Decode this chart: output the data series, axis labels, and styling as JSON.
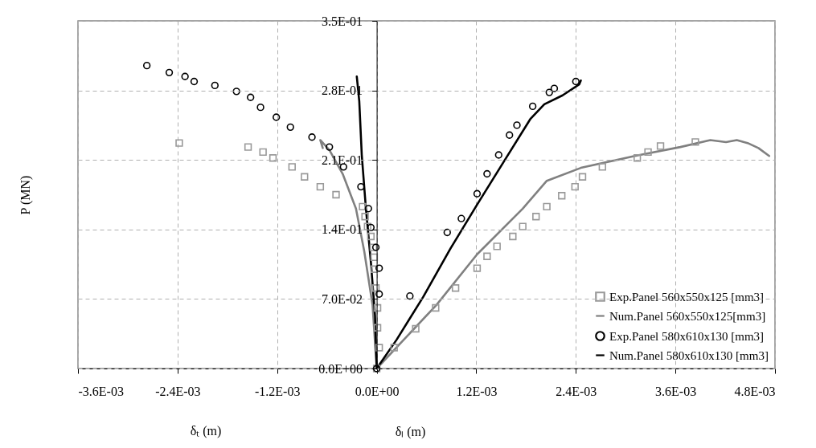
{
  "chart_data": {
    "type": "scatter",
    "xlabel": "δₗ (m)",
    "ylabel": "P (MN)",
    "annotations": [
      "δₜ (m)"
    ],
    "xlim": [
      -0.0036,
      0.0048
    ],
    "xticks": [
      {
        "value": -0.0036,
        "label": "-3.6E-03"
      },
      {
        "value": -0.0024,
        "label": "-2.4E-03"
      },
      {
        "value": -0.0012,
        "label": "-1.2E-03"
      },
      {
        "value": 0,
        "label": "0.0E+00"
      },
      {
        "value": 0.0012,
        "label": "1.2E-03"
      },
      {
        "value": 0.0024,
        "label": "2.4E-03"
      },
      {
        "value": 0.0036,
        "label": "3.6E-03"
      },
      {
        "value": 0.0048,
        "label": "4.8E-03"
      }
    ],
    "ylim": [
      0,
      0.35
    ],
    "yticks": [
      {
        "value": 0,
        "label": "0.0E+00"
      },
      {
        "value": 0.07,
        "label": "7.0E-02"
      },
      {
        "value": 0.14,
        "label": "1.4E-01"
      },
      {
        "value": 0.21,
        "label": "2.1E-01"
      },
      {
        "value": 0.28,
        "label": "2.8E-01"
      },
      {
        "value": 0.35,
        "label": "3.5E-01"
      }
    ],
    "grid": true,
    "legend": "bottom right",
    "series": [
      {
        "name": "Exp.Panel 560x550x125 [mm3]",
        "marker": "square",
        "color": "#999999",
        "x": [
          -0.00238,
          -0.00155,
          -0.00137,
          -0.00125,
          -0.00102,
          -0.00087,
          -0.00068,
          -0.00049,
          -0.00017,
          -0.00014,
          -0.00011,
          -7e-05,
          -4e-05,
          -3e-05,
          -3e-05,
          -1e-05,
          1e-05,
          1e-05,
          3e-05,
          0,
          0.00021,
          0.00047,
          0.00071,
          0.00095,
          0.00121,
          0.00133,
          0.00145,
          0.00164,
          0.00176,
          0.00192,
          0.00205,
          0.00223,
          0.00239,
          0.00248,
          0.00272,
          0.00314,
          0.00327,
          0.00342,
          0.00384
        ],
        "values": [
          0.227,
          0.223,
          0.218,
          0.212,
          0.203,
          0.193,
          0.183,
          0.175,
          0.163,
          0.153,
          0.143,
          0.133,
          0.122,
          0.112,
          0.1,
          0.081,
          0.061,
          0.041,
          0.021,
          0,
          0.021,
          0.04,
          0.061,
          0.081,
          0.101,
          0.113,
          0.123,
          0.133,
          0.143,
          0.153,
          0.163,
          0.174,
          0.183,
          0.193,
          0.203,
          0.212,
          0.218,
          0.224,
          0.228
        ]
      },
      {
        "name": "Num.Panel 560x550x125[mm3]",
        "type": "line",
        "line_style": "solid",
        "color": "#808080",
        "x": [
          -0.00065,
          -0.00068,
          -0.00057,
          -0.00041,
          -0.00025,
          -0.00015,
          -5e-05,
          0,
          0.00072,
          0.00121,
          0.00176,
          0.00205,
          0.00246,
          0.00311,
          0.00366,
          0.00402,
          0.00421,
          0.00434,
          0.00447,
          0.0046,
          0.00473
        ],
        "values": [
          0.222,
          0.23,
          0.22,
          0.196,
          0.161,
          0.118,
          0.064,
          0,
          0.064,
          0.115,
          0.161,
          0.189,
          0.202,
          0.214,
          0.223,
          0.23,
          0.228,
          0.23,
          0.227,
          0.222,
          0.214
        ]
      },
      {
        "name": "Exp.Panel 580x610x130 [mm3]",
        "marker": "circle",
        "color": "#000000",
        "x": [
          -0.00277,
          -0.0025,
          -0.00231,
          -0.0022,
          -0.00195,
          -0.00169,
          -0.00152,
          -0.0014,
          -0.00121,
          -0.00104,
          -0.00078,
          -0.00057,
          -0.0004,
          -0.00019,
          -0.0001,
          -7e-05,
          -1e-05,
          3e-05,
          3e-05,
          0,
          0.0004,
          0.00085,
          0.00102,
          0.00121,
          0.00133,
          0.00147,
          0.0016,
          0.00169,
          0.00188,
          0.00208,
          0.00214,
          0.0024
        ],
        "values": [
          0.305,
          0.298,
          0.294,
          0.289,
          0.285,
          0.279,
          0.273,
          0.263,
          0.253,
          0.243,
          0.233,
          0.223,
          0.203,
          0.183,
          0.161,
          0.142,
          0.122,
          0.101,
          0.075,
          0,
          0.073,
          0.137,
          0.151,
          0.176,
          0.196,
          0.215,
          0.235,
          0.245,
          0.264,
          0.278,
          0.282,
          0.289
        ]
      },
      {
        "name": "Num.Panel 580x610x130 [mm3]",
        "type": "line",
        "line_style": "solid",
        "color": "#000000",
        "x": [
          -0.00024,
          -0.00021,
          -0.00018,
          -0.00013,
          -7e-05,
          -2e-05,
          0,
          0.00024,
          0.00056,
          0.00089,
          0.00121,
          0.00153,
          0.00185,
          0.00202,
          0.00224,
          0.00244,
          0.00246
        ],
        "values": [
          0.294,
          0.269,
          0.215,
          0.161,
          0.107,
          0.053,
          0,
          0.029,
          0.072,
          0.121,
          0.165,
          0.208,
          0.251,
          0.266,
          0.275,
          0.286,
          0.29
        ]
      }
    ]
  }
}
